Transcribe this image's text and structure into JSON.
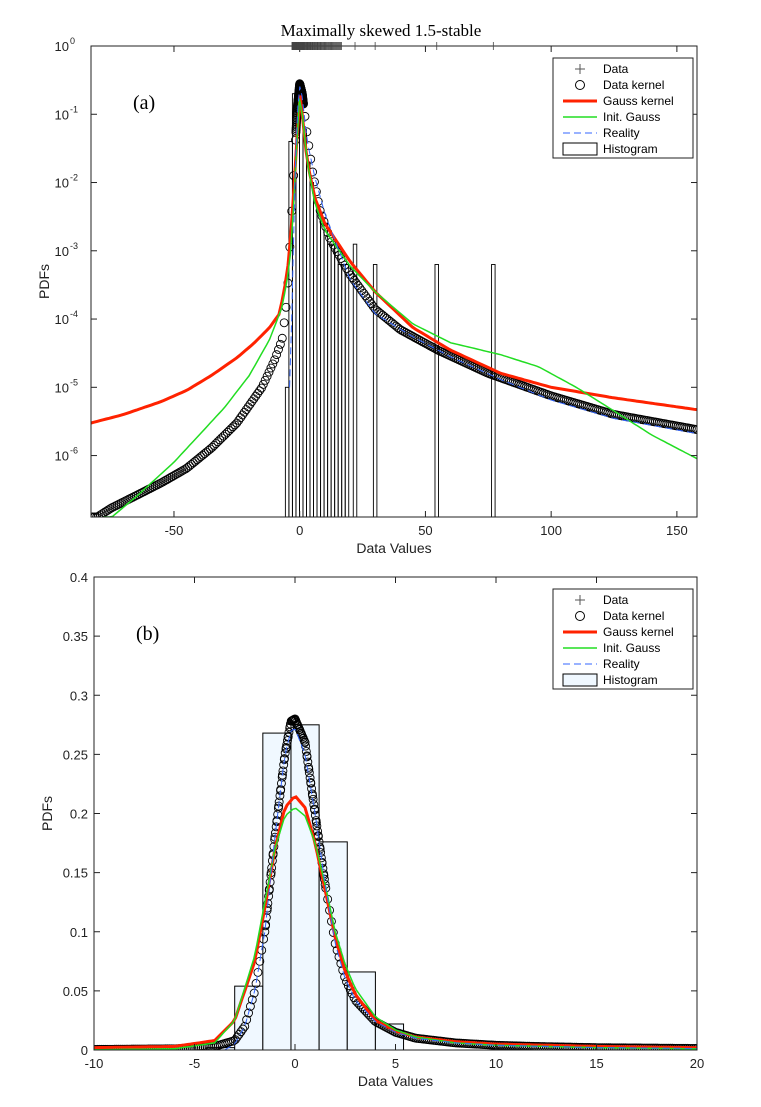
{
  "figure_title": "Maximally skewed 1.5-stable",
  "legend": {
    "entries": [
      "Data",
      "Data kernel",
      "Gauss kernel",
      "Init. Gauss",
      "Reality",
      "Histogram"
    ]
  },
  "colors": {
    "gauss_kernel": "#ff2200",
    "init_gauss": "#22dd22",
    "reality": "#3366ff",
    "data_kernel": "#000000",
    "histogram_fill_b": "#f0f8ff"
  },
  "chart_data": [
    {
      "type": "line",
      "panel_label": "(a)",
      "title": "Maximally skewed 1.5-stable",
      "xlabel": "Data Values",
      "ylabel": "PDFs",
      "xlim": [
        -83,
        158
      ],
      "ylim_log10": [
        -6.9,
        0
      ],
      "yscale": "log",
      "xticks": [
        -50,
        0,
        50,
        100,
        150
      ],
      "xtick_labels": [
        "-50",
        "0",
        "50",
        "100",
        "150"
      ],
      "yticks": [
        1e-06,
        1e-05,
        0.0001,
        0.001,
        0.01,
        0.1,
        1
      ],
      "ytick_exponents": [
        "-6",
        "-5",
        "-4",
        "-3",
        "-2",
        "-1",
        "0"
      ],
      "legend_position": "top-right",
      "series": [
        {
          "name": "Data kernel",
          "x": [
            -83,
            -75,
            -65,
            -55,
            -45,
            -35,
            -25,
            -15,
            -10,
            -7,
            -5,
            -3,
            -1,
            0,
            1,
            3,
            5,
            8,
            12,
            20,
            30,
            40,
            55,
            75,
            100,
            125,
            158
          ],
          "y": [
            1.1e-07,
            1.7e-07,
            2.6e-07,
            4e-07,
            6.5e-07,
            1.3e-06,
            3e-06,
            1e-05,
            2.5e-05,
            5e-05,
            0.0002,
            0.005,
            0.12,
            0.28,
            0.2,
            0.05,
            0.015,
            0.004,
            0.0015,
            0.00045,
            0.00014,
            7e-05,
            3.5e-05,
            1.6e-05,
            7.5e-06,
            4e-06,
            2.4e-06
          ]
        },
        {
          "name": "Gauss kernel",
          "x": [
            -83,
            -70,
            -55,
            -45,
            -35,
            -25,
            -18,
            -12,
            -8,
            -5,
            -3,
            -1,
            0,
            1,
            3,
            6,
            10,
            20,
            30,
            45,
            60,
            80,
            100,
            125,
            158
          ],
          "y": [
            3e-06,
            4e-06,
            6.2e-06,
            9e-06,
            1.5e-05,
            2.7e-05,
            4.5e-05,
            7.5e-05,
            0.00012,
            0.00045,
            0.003,
            0.05,
            0.21,
            0.1,
            0.02,
            0.006,
            0.0025,
            0.0007,
            0.00025,
            7.5e-05,
            3.5e-05,
            1.6e-05,
            1e-05,
            7e-06,
            4.7e-06
          ]
        },
        {
          "name": "Init. Gauss",
          "x": [
            -78,
            -65,
            -50,
            -40,
            -30,
            -20,
            -12,
            -7,
            -4,
            -2,
            -1,
            0,
            1,
            3,
            6,
            10,
            20,
            30,
            45,
            60,
            80,
            95,
            110,
            125,
            140,
            158
          ],
          "y": [
            1e-07,
            2.5e-07,
            8e-07,
            2e-06,
            5e-06,
            1.5e-05,
            5e-05,
            0.00015,
            0.0006,
            0.008,
            0.05,
            0.2,
            0.1,
            0.02,
            0.005,
            0.002,
            0.0006,
            0.00025,
            8.5e-05,
            4.5e-05,
            3e-05,
            2e-05,
            1e-05,
            4.5e-06,
            2e-06,
            9e-07
          ]
        },
        {
          "name": "Reality",
          "x": [
            -4,
            -3.2,
            -2.5,
            -2,
            -1,
            0,
            1,
            3,
            6,
            10,
            20,
            30,
            45,
            60,
            80,
            100,
            125,
            158
          ],
          "y": [
            1e-05,
            0.0001,
            0.001,
            0.01,
            0.1,
            0.26,
            0.18,
            0.04,
            0.012,
            0.0035,
            0.00038,
            0.00012,
            5.5e-05,
            2.8e-05,
            1.3e-05,
            6.5e-06,
            3.5e-06,
            2.1e-06
          ]
        }
      ],
      "histogram": {
        "name": "Histogram",
        "bin_centers": [
          -5,
          -3.6,
          -2.2,
          -0.8,
          0.6,
          2,
          3.4,
          4.8,
          6.2,
          7.6,
          9,
          10.4,
          11.8,
          13.2,
          14.6,
          16,
          17.4,
          18.8,
          22,
          30,
          54.5,
          77
        ],
        "heights": [
          1e-05,
          0.04,
          0.2,
          0.27,
          0.18,
          0.06,
          0.02,
          0.01,
          0.005,
          0.0035,
          0.0025,
          0.0025,
          0.00125,
          0.00125,
          0.00125,
          0.00063,
          0.00063,
          0.00063,
          0.00125,
          0.00063,
          0.00063,
          0.00063
        ],
        "bin_width": 1.4
      }
    },
    {
      "type": "line",
      "panel_label": "(b)",
      "xlabel": "Data Values",
      "ylabel": "PDFs",
      "xlim": [
        -10,
        20
      ],
      "ylim": [
        0,
        0.4
      ],
      "xticks": [
        -10,
        -5,
        0,
        5,
        10,
        15,
        20
      ],
      "yticks": [
        0,
        0.05,
        0.1,
        0.15,
        0.2,
        0.25,
        0.3,
        0.35,
        0.4
      ],
      "ytick_labels": [
        "0",
        "0.05",
        "0.1",
        "0.15",
        "0.2",
        "0.25",
        "0.3",
        "0.35",
        "0.4"
      ],
      "xtick_labels": [
        "-10",
        "-5",
        "0",
        "5",
        "10",
        "15",
        "20"
      ],
      "legend_position": "top-right",
      "series": [
        {
          "name": "Data kernel",
          "x": [
            -10,
            -6,
            -4,
            -3,
            -2.5,
            -2,
            -1.5,
            -1,
            -0.5,
            -0.2,
            0,
            0.5,
            1,
            1.5,
            2,
            2.5,
            3,
            4,
            5,
            6,
            8,
            10,
            12,
            15,
            20
          ],
          "y": [
            0.0005,
            0.001,
            0.003,
            0.008,
            0.02,
            0.05,
            0.1,
            0.18,
            0.25,
            0.278,
            0.28,
            0.26,
            0.2,
            0.14,
            0.09,
            0.06,
            0.042,
            0.024,
            0.015,
            0.01,
            0.006,
            0.004,
            0.003,
            0.002,
            0.0013
          ]
        },
        {
          "name": "Gauss kernel",
          "x": [
            -10,
            -6,
            -4,
            -3,
            -2,
            -1.5,
            -1,
            -0.5,
            0,
            0.5,
            1,
            1.5,
            2,
            2.5,
            3,
            4,
            5,
            6,
            8,
            10,
            15,
            20
          ],
          "y": [
            0.002,
            0.003,
            0.008,
            0.025,
            0.075,
            0.12,
            0.17,
            0.205,
            0.215,
            0.205,
            0.175,
            0.135,
            0.095,
            0.066,
            0.047,
            0.025,
            0.016,
            0.011,
            0.007,
            0.005,
            0.003,
            0.002
          ]
        },
        {
          "name": "Init. Gauss",
          "x": [
            -10,
            -6,
            -4,
            -3,
            -2,
            -1.5,
            -1,
            -0.5,
            0,
            0.5,
            1,
            1.5,
            2,
            2.5,
            3,
            4,
            5,
            6,
            8,
            10,
            15,
            20
          ],
          "y": [
            0.0002,
            0.001,
            0.006,
            0.025,
            0.08,
            0.125,
            0.17,
            0.198,
            0.205,
            0.198,
            0.175,
            0.14,
            0.1,
            0.072,
            0.052,
            0.028,
            0.017,
            0.011,
            0.006,
            0.004,
            0.002,
            0.001
          ]
        },
        {
          "name": "Reality",
          "x": [
            -3.5,
            -3,
            -2.5,
            -2,
            -1.5,
            -1,
            -0.5,
            -0.2,
            0,
            0.5,
            1,
            1.5,
            2,
            2.5,
            3,
            4,
            5,
            6,
            8,
            10,
            15,
            20
          ],
          "y": [
            0.0,
            0.005,
            0.02,
            0.05,
            0.1,
            0.18,
            0.25,
            0.27,
            0.272,
            0.25,
            0.2,
            0.14,
            0.09,
            0.06,
            0.042,
            0.024,
            0.015,
            0.01,
            0.006,
            0.004,
            0.002,
            0.0013
          ]
        }
      ],
      "histogram": {
        "name": "Histogram",
        "edges": [
          -4.4,
          -3.0,
          -1.6,
          -0.2,
          1.2,
          2.6,
          4.0,
          5.4
        ],
        "heights": [
          0.002,
          0.054,
          0.268,
          0.275,
          0.176,
          0.066,
          0.022
        ]
      }
    }
  ]
}
